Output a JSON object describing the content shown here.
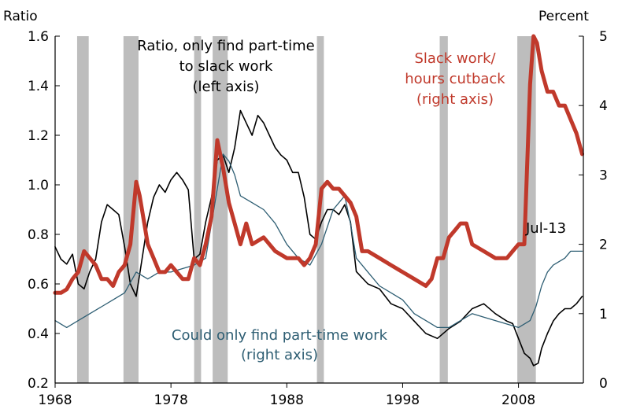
{
  "chart_data": {
    "type": "line",
    "left_axis": {
      "unit_label": "Ratio",
      "ticks": [
        "0.2",
        "0.4",
        "0.6",
        "0.8",
        "1.0",
        "1.2",
        "1.4",
        "1.6"
      ],
      "ylim": [
        0.2,
        1.6
      ]
    },
    "right_axis": {
      "unit_label": "Percent",
      "ticks": [
        "0",
        "1",
        "2",
        "3",
        "4",
        "5"
      ],
      "ylim": [
        0,
        5
      ]
    },
    "x_axis": {
      "ticks": [
        "1968",
        "1978",
        "1988",
        "1998",
        "2008"
      ],
      "xlim": [
        1968,
        2013.6
      ]
    },
    "grid": false,
    "recessions": [
      [
        1969.9,
        1970.9
      ],
      [
        1973.9,
        1975.2
      ],
      [
        1980.0,
        1980.6
      ],
      [
        1981.6,
        1982.9
      ],
      [
        1990.6,
        1991.2
      ],
      [
        2001.2,
        2001.9
      ],
      [
        2007.9,
        2009.5
      ]
    ],
    "annotations": {
      "ratio_line1": "Ratio, only find part-time",
      "ratio_line2": "to slack work",
      "ratio_line3": "(left axis)",
      "slack_line1": "Slack work/",
      "slack_line2": "hours cutback",
      "slack_line3": "(right axis)",
      "could_line1": "Could only find part-time work",
      "could_line2": "(right axis)",
      "end_label": "Jul-13"
    },
    "series": [
      {
        "axis": "right",
        "color": "#c0392b",
        "x": [
          1968.0,
          1968.5,
          1969.0,
          1969.5,
          1970.0,
          1970.5,
          1971.0,
          1971.5,
          1972.0,
          1972.5,
          1973.0,
          1973.5,
          1974.0,
          1974.5,
          1975.0,
          1975.3,
          1975.7,
          1976.0,
          1976.5,
          1977.0,
          1977.5,
          1978.0,
          1978.5,
          1979.0,
          1979.5,
          1980.0,
          1980.5,
          1981.0,
          1981.5,
          1982.0,
          1982.5,
          1983.0,
          1983.5,
          1984.0,
          1984.5,
          1985.0,
          1986.0,
          1987.0,
          1988.0,
          1989.0,
          1989.5,
          1990.0,
          1990.5,
          1991.0,
          1991.5,
          1992.0,
          1992.5,
          1993.0,
          1993.5,
          1994.0,
          1994.5,
          1995.0,
          1996.0,
          1997.0,
          1998.0,
          1999.0,
          2000.0,
          2000.5,
          2001.0,
          2001.5,
          2002.0,
          2002.5,
          2003.0,
          2003.5,
          2004.0,
          2005.0,
          2006.0,
          2007.0,
          2007.5,
          2008.0,
          2008.5,
          2009.0,
          2009.3,
          2009.6,
          2010.0,
          2010.5,
          2011.0,
          2011.5,
          2012.0,
          2012.5,
          2013.0,
          2013.5
        ],
        "values": [
          1.3,
          1.3,
          1.35,
          1.5,
          1.6,
          1.9,
          1.8,
          1.7,
          1.5,
          1.5,
          1.4,
          1.6,
          1.7,
          2.0,
          2.9,
          2.7,
          2.3,
          2.0,
          1.8,
          1.6,
          1.6,
          1.7,
          1.6,
          1.5,
          1.5,
          1.8,
          1.7,
          2.0,
          2.4,
          3.5,
          3.1,
          2.6,
          2.3,
          2.0,
          2.3,
          2.0,
          2.1,
          1.9,
          1.8,
          1.8,
          1.7,
          1.8,
          2.0,
          2.8,
          2.9,
          2.8,
          2.8,
          2.7,
          2.6,
          2.4,
          1.9,
          1.9,
          1.8,
          1.7,
          1.6,
          1.5,
          1.4,
          1.5,
          1.8,
          1.8,
          2.1,
          2.2,
          2.3,
          2.3,
          2.0,
          1.9,
          1.8,
          1.8,
          1.9,
          2.0,
          2.0,
          4.3,
          5.0,
          4.9,
          4.5,
          4.2,
          4.2,
          4.0,
          4.0,
          3.8,
          3.6,
          3.3
        ]
      },
      {
        "axis": "left",
        "color": "#000000",
        "x": [
          1968.0,
          1968.5,
          1969.0,
          1969.5,
          1970.0,
          1970.5,
          1971.0,
          1971.5,
          1972.0,
          1972.5,
          1973.0,
          1973.5,
          1974.0,
          1974.5,
          1975.0,
          1975.5,
          1976.0,
          1976.5,
          1977.0,
          1977.5,
          1978.0,
          1978.5,
          1979.0,
          1979.5,
          1980.0,
          1980.5,
          1981.0,
          1981.5,
          1982.0,
          1982.5,
          1983.0,
          1983.5,
          1984.0,
          1984.5,
          1985.0,
          1985.5,
          1986.0,
          1986.5,
          1987.0,
          1987.5,
          1988.0,
          1988.5,
          1989.0,
          1989.5,
          1990.0,
          1990.5,
          1991.0,
          1991.5,
          1992.0,
          1992.5,
          1993.0,
          1993.5,
          1994.0,
          1995.0,
          1996.0,
          1997.0,
          1998.0,
          1999.0,
          2000.0,
          2001.0,
          2002.0,
          2003.0,
          2004.0,
          2005.0,
          2006.0,
          2007.0,
          2007.5,
          2008.0,
          2008.5,
          2009.0,
          2009.3,
          2009.7,
          2010.0,
          2010.5,
          2011.0,
          2011.5,
          2012.0,
          2012.5,
          2013.0,
          2013.5
        ],
        "values": [
          0.75,
          0.7,
          0.68,
          0.72,
          0.6,
          0.58,
          0.65,
          0.7,
          0.85,
          0.92,
          0.9,
          0.88,
          0.75,
          0.6,
          0.55,
          0.7,
          0.85,
          0.95,
          1.0,
          0.97,
          1.02,
          1.05,
          1.02,
          0.98,
          0.7,
          0.72,
          0.85,
          0.95,
          1.1,
          1.12,
          1.05,
          1.15,
          1.3,
          1.25,
          1.2,
          1.28,
          1.25,
          1.2,
          1.15,
          1.12,
          1.1,
          1.05,
          1.05,
          0.95,
          0.8,
          0.78,
          0.85,
          0.9,
          0.9,
          0.88,
          0.92,
          0.85,
          0.65,
          0.6,
          0.58,
          0.52,
          0.5,
          0.45,
          0.4,
          0.38,
          0.42,
          0.45,
          0.5,
          0.52,
          0.48,
          0.45,
          0.44,
          0.38,
          0.32,
          0.3,
          0.27,
          0.28,
          0.34,
          0.4,
          0.45,
          0.48,
          0.5,
          0.5,
          0.52,
          0.55
        ]
      },
      {
        "axis": "right",
        "color": "#2e5e73",
        "x": [
          1968.0,
          1969.0,
          1970.0,
          1971.0,
          1972.0,
          1973.0,
          1974.0,
          1975.0,
          1976.0,
          1977.0,
          1978.0,
          1979.0,
          1980.0,
          1981.0,
          1982.0,
          1982.5,
          1983.0,
          1983.5,
          1984.0,
          1985.0,
          1986.0,
          1987.0,
          1988.0,
          1989.0,
          1990.0,
          1991.0,
          1992.0,
          1993.0,
          1993.5,
          1994.0,
          1995.0,
          1996.0,
          1997.0,
          1998.0,
          1999.0,
          2000.0,
          2001.0,
          2002.0,
          2003.0,
          2004.0,
          2005.0,
          2006.0,
          2007.0,
          2008.0,
          2009.0,
          2009.5,
          2010.0,
          2010.5,
          2011.0,
          2012.0,
          2012.5,
          2013.0,
          2013.5
        ],
        "values": [
          0.9,
          0.8,
          0.9,
          1.0,
          1.1,
          1.2,
          1.3,
          1.6,
          1.5,
          1.6,
          1.6,
          1.65,
          1.7,
          1.8,
          2.8,
          3.3,
          3.2,
          3.0,
          2.7,
          2.6,
          2.5,
          2.3,
          2.0,
          1.8,
          1.7,
          2.0,
          2.5,
          2.7,
          2.3,
          1.8,
          1.6,
          1.4,
          1.3,
          1.2,
          1.0,
          0.9,
          0.8,
          0.8,
          0.9,
          1.0,
          0.95,
          0.9,
          0.85,
          0.8,
          0.9,
          1.1,
          1.4,
          1.6,
          1.7,
          1.8,
          1.9,
          1.9,
          1.9
        ]
      }
    ]
  }
}
